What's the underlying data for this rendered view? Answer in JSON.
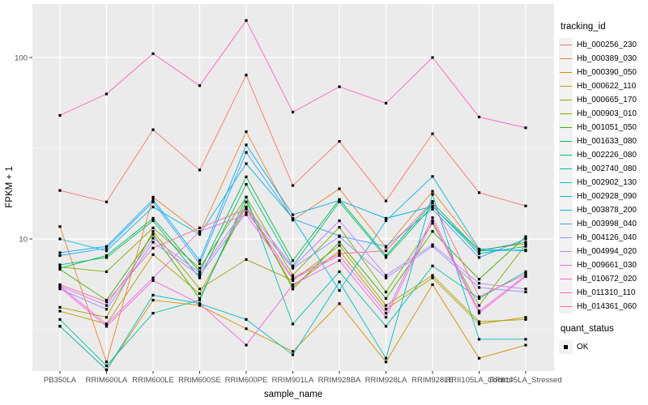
{
  "figure": {
    "tracking_legend_title": "tracking_id",
    "quant_legend_title": "quant_status",
    "quant_ok_label": "OK",
    "colors": {
      "panel_bg": "#EBEBEB",
      "grid": "#FFFFFF",
      "axis_text": "#4D4D4D",
      "tick": "#333333",
      "point": "#000000",
      "legend_key_bg": "#F2F2F2"
    }
  },
  "chart_data": {
    "type": "line",
    "title": "",
    "xlabel": "sample_name",
    "ylabel": "FPKM + 1",
    "y_scale": "log10",
    "ylim": [
      1.9,
      190
    ],
    "y_ticks": [
      10,
      100
    ],
    "y_minor_ticks": [
      3.1623,
      31.6228
    ],
    "grid": true,
    "legend_position": "right",
    "point_shape": "filled-square",
    "point_meaning": "quant_status OK",
    "categories": [
      "PB350LA",
      "RRIM600LA",
      "RRIM600LE",
      "RRIM600SE",
      "RRIM600PE",
      "RRIM901LA",
      "RRIM928BA",
      "RRIM928LA",
      "RRIM928LE",
      "RRII105LA_Control",
      "RRII105LA_Stressed"
    ],
    "series": [
      {
        "name": "Hb_000256_230",
        "color": "#F8766D",
        "values": [
          18.5,
          16,
          40,
          24,
          80,
          19.7,
          34.5,
          16.2,
          38,
          18,
          15.2
        ]
      },
      {
        "name": "Hb_000389_030",
        "color": "#EA8331",
        "values": [
          11.7,
          2.1,
          17,
          10.8,
          39,
          12.7,
          18.9,
          9.0,
          18.3,
          8.7,
          9.4
        ]
      },
      {
        "name": "Hb_000390_050",
        "color": "#D89000",
        "values": [
          3.3,
          1.9,
          4.6,
          4.3,
          3.2,
          2.4,
          4.4,
          2.1,
          5.6,
          2.2,
          2.6
        ]
      },
      {
        "name": "Hb_000622_110",
        "color": "#C09B00",
        "values": [
          4.0,
          3.4,
          8.2,
          5.0,
          15,
          5.5,
          8.6,
          4.1,
          6.1,
          3.4,
          3.7
        ]
      },
      {
        "name": "Hb_000665_170",
        "color": "#A3A500",
        "values": [
          4.2,
          3.7,
          11,
          5.3,
          7.7,
          5.9,
          9.2,
          4.3,
          6.3,
          3.5,
          3.6
        ]
      },
      {
        "name": "Hb_000903_010",
        "color": "#7CAE00",
        "values": [
          7.0,
          6.6,
          11.5,
          6.9,
          17,
          6.3,
          11.6,
          5.1,
          12.2,
          4.3,
          9.3
        ]
      },
      {
        "name": "Hb_001051_050",
        "color": "#39B600",
        "values": [
          6.8,
          4.6,
          10.6,
          4.7,
          16,
          5.3,
          9.6,
          4.7,
          11,
          6.0,
          10.3
        ]
      },
      {
        "name": "Hb_001633_080",
        "color": "#00BB4E",
        "values": [
          6.9,
          8.1,
          13,
          6.6,
          22,
          7.6,
          16.5,
          8.1,
          15.8,
          8.6,
          9.6
        ]
      },
      {
        "name": "Hb_002226_080",
        "color": "#00BF7D",
        "values": [
          7.2,
          7.9,
          12.6,
          6.1,
          20,
          7.1,
          16.0,
          7.9,
          15.2,
          8.3,
          9.1
        ]
      },
      {
        "name": "Hb_002740_080",
        "color": "#00C1A3",
        "values": [
          3.6,
          2.0,
          3.9,
          4.6,
          17,
          3.4,
          6.6,
          3.3,
          7.1,
          4.7,
          6.6
        ]
      },
      {
        "name": "Hb_002902_130",
        "color": "#00BFC4",
        "values": [
          3.3,
          1.9,
          4.9,
          4.4,
          3.6,
          2.3,
          5.8,
          2.2,
          17.6,
          2.8,
          2.8
        ]
      },
      {
        "name": "Hb_002928_090",
        "color": "#00BAE0",
        "values": [
          10,
          8.6,
          15,
          10.6,
          26,
          13,
          5.2,
          12.6,
          22.1,
          8.8,
          8.6
        ]
      },
      {
        "name": "Hb_003878_200",
        "color": "#00B0F6",
        "values": [
          8.4,
          9.1,
          16.5,
          7.6,
          33,
          13.6,
          16.3,
          13,
          15.1,
          8.6,
          8.7
        ]
      },
      {
        "name": "Hb_003998_040",
        "color": "#35A2FF",
        "values": [
          8.1,
          8.9,
          16,
          7.3,
          30,
          12.9,
          10.4,
          9.1,
          14.6,
          7.9,
          10.0
        ]
      },
      {
        "name": "Hb_004126_040",
        "color": "#9590FF",
        "values": [
          5.3,
          4.1,
          9.6,
          6.3,
          14,
          6.9,
          10.3,
          6.1,
          9.1,
          5.4,
          5.1
        ]
      },
      {
        "name": "Hb_004994_020",
        "color": "#C77CFF",
        "values": [
          5.5,
          4.3,
          10.1,
          6.5,
          15,
          7.0,
          12.6,
          6.3,
          9.3,
          5.7,
          5.3
        ]
      },
      {
        "name": "Hb_009661_030",
        "color": "#E76BF3",
        "values": [
          5.5,
          3.4,
          6.1,
          11,
          13.6,
          6.0,
          8.1,
          3.9,
          13.1,
          4.0,
          6.3
        ]
      },
      {
        "name": "Hb_010672_020",
        "color": "#FA62DB",
        "values": [
          5.4,
          3.3,
          5.9,
          4.4,
          2.6,
          5.6,
          7.6,
          3.7,
          12.6,
          3.9,
          6.2
        ]
      },
      {
        "name": "Hb_011310_110",
        "color": "#FF61C3",
        "values": [
          48,
          63,
          105,
          70,
          160,
          50,
          69,
          56,
          100,
          47,
          41
        ]
      },
      {
        "name": "Hb_014361_060",
        "color": "#FF6A98",
        "values": [
          5.6,
          4.5,
          8.9,
          11.5,
          14.6,
          6.1,
          8.3,
          8.6,
          16.1,
          4.8,
          6.4
        ]
      }
    ]
  }
}
